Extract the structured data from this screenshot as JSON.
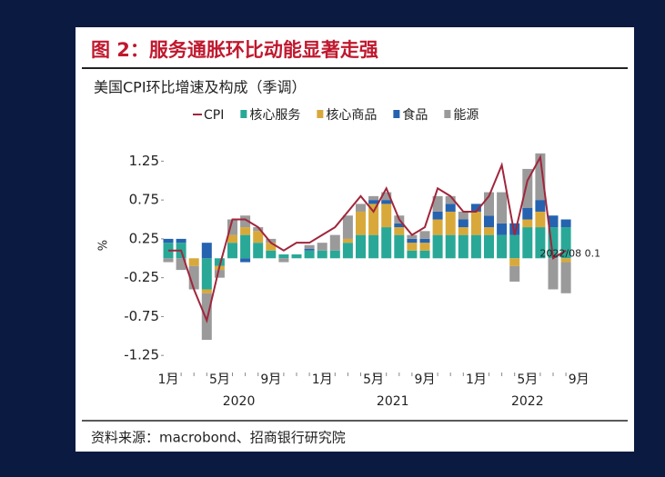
{
  "chart_data": {
    "type": "stacked_bar_line",
    "title": "图 2：服务通胀环比动能显著走强",
    "subtitle": "美国CPI环比增速及构成（季调）",
    "y_label": "%",
    "source": "资料来源：macrobond、招商银行研究院",
    "annotation": "2022/08 0.1",
    "categories": [
      "1月",
      null,
      null,
      null,
      "5月",
      null,
      null,
      null,
      "9月",
      null,
      null,
      null,
      "1月",
      null,
      null,
      null,
      "5月",
      null,
      null,
      null,
      "9月",
      null,
      null,
      null,
      "1月",
      null,
      null,
      null,
      "5月",
      null,
      null,
      null,
      "9月"
    ],
    "years": [
      "2020",
      "2021",
      "2022"
    ],
    "series": [
      {
        "name": "CPI",
        "kind": "line",
        "color": "#a0263c",
        "values": [
          0.1,
          0.1,
          -0.4,
          -0.8,
          -0.1,
          0.5,
          0.5,
          0.4,
          0.2,
          0.1,
          0.2,
          0.2,
          0.3,
          0.4,
          0.6,
          0.8,
          0.6,
          0.9,
          0.5,
          0.3,
          0.4,
          0.9,
          0.8,
          0.6,
          0.6,
          0.8,
          1.2,
          0.3,
          1.0,
          1.3,
          0.0,
          0.1,
          null
        ]
      },
      {
        "name": "核心服务",
        "kind": "bar",
        "color": "#2aa897",
        "values": [
          0.2,
          0.2,
          0.0,
          -0.4,
          -0.1,
          0.2,
          0.3,
          0.2,
          0.1,
          0.05,
          0.05,
          0.1,
          0.1,
          0.1,
          0.2,
          0.3,
          0.3,
          0.4,
          0.3,
          0.1,
          0.1,
          0.3,
          0.3,
          0.3,
          0.3,
          0.3,
          0.3,
          0.3,
          0.4,
          0.4,
          0.4,
          0.4,
          null
        ]
      },
      {
        "name": "核心商品",
        "kind": "bar",
        "color": "#d8a93a",
        "values": [
          0,
          0,
          -0.1,
          -0.05,
          -0.05,
          0.1,
          0.1,
          0.15,
          0.1,
          0,
          0,
          0,
          0,
          0,
          0.05,
          0.3,
          0.4,
          0.3,
          0.1,
          0.1,
          0.1,
          0.2,
          0.3,
          0.1,
          0.3,
          0.1,
          0,
          -0.1,
          0.1,
          0.2,
          0,
          -0.05,
          null
        ]
      },
      {
        "name": "食品",
        "kind": "bar",
        "color": "#2563b0",
        "values": [
          0.05,
          0.05,
          0,
          0.2,
          0,
          0,
          -0.05,
          0,
          0,
          0,
          0,
          0.02,
          0,
          0,
          0,
          0,
          0.05,
          0.05,
          0.05,
          0.05,
          0.05,
          0.1,
          0.1,
          0.1,
          0.1,
          0.15,
          0.15,
          0.15,
          0.15,
          0.15,
          0.15,
          0.1,
          null
        ]
      },
      {
        "name": "能源",
        "kind": "bar",
        "color": "#9a9a9a",
        "values": [
          -0.05,
          -0.15,
          -0.3,
          -0.6,
          -0.1,
          0.2,
          0.15,
          0.05,
          0.05,
          -0.05,
          0,
          0.05,
          0.1,
          0.2,
          0.3,
          0.1,
          0.05,
          0.1,
          0.1,
          0.05,
          0.1,
          0.2,
          0.1,
          0.1,
          0,
          0.3,
          0.4,
          -0.2,
          0.5,
          0.6,
          -0.4,
          -0.4,
          null
        ]
      }
    ],
    "ylim": [
      -1.47,
      1.57
    ],
    "yticks": [
      1.25,
      0.75,
      0.25,
      -0.25,
      -0.75,
      -1.25
    ]
  }
}
